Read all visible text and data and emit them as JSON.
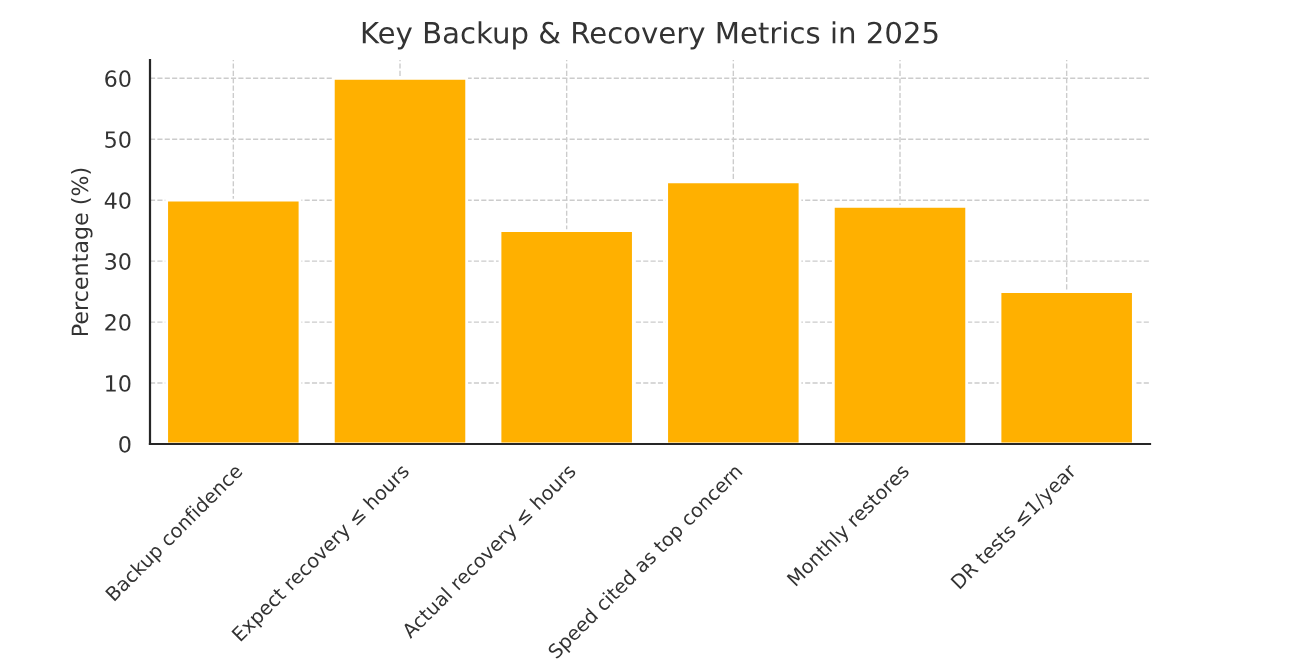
{
  "chart_data": {
    "type": "bar",
    "title": "Key Backup & Recovery Metrics in 2025",
    "ylabel": "Percentage (%)",
    "categories": [
      "Backup confidence",
      "Expect recovery ≤ hours",
      "Actual recovery ≤ hours",
      "Speed cited as top concern",
      "Monthly restores",
      "DR tests ≤1/year"
    ],
    "values": [
      40,
      60,
      35,
      43,
      39,
      25
    ],
    "color": "#ffb000",
    "ylim": [
      0,
      63
    ],
    "yticks": [
      0,
      10,
      20,
      30,
      40,
      50,
      60
    ],
    "grid": true,
    "legend": false
  }
}
